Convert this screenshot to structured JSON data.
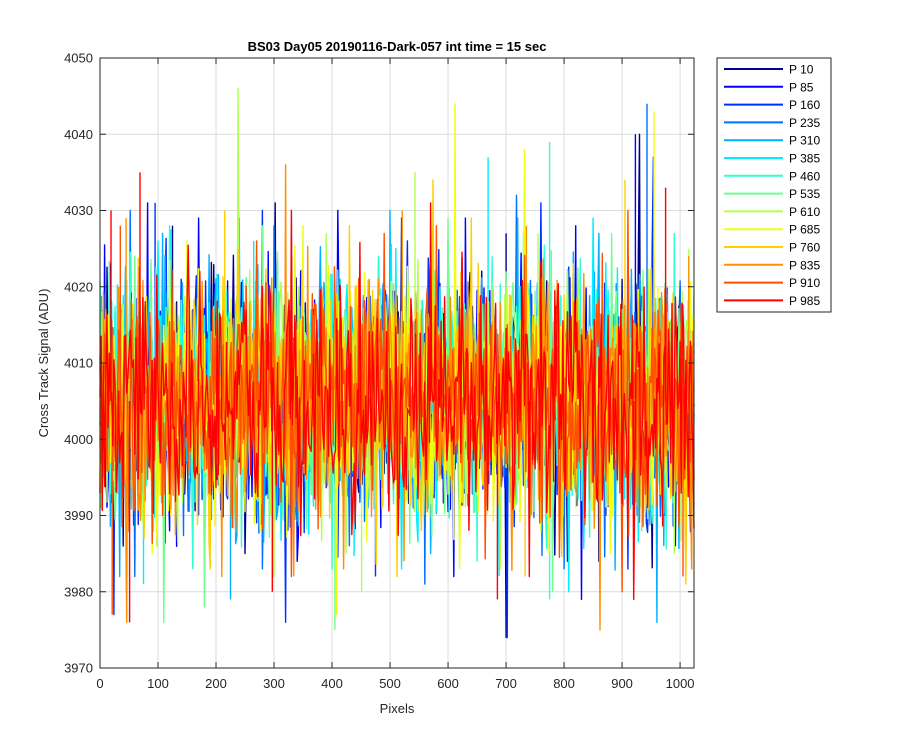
{
  "chart_data": {
    "type": "line",
    "title": "BS03 Day05 20190116-Dark-057 int time = 15 sec",
    "xlabel": "Pixels",
    "ylabel": "Cross Track Signal (ADU)",
    "xlim": [
      0,
      1024
    ],
    "ylim": [
      3970,
      4050
    ],
    "xticks": [
      0,
      100,
      200,
      300,
      400,
      500,
      600,
      700,
      800,
      900,
      1000
    ],
    "yticks": [
      3970,
      3980,
      3990,
      4000,
      4010,
      4020,
      4030,
      4040,
      4050
    ],
    "grid": true,
    "legend_position": "outside-top-right",
    "series_summary": {
      "mean": 4005,
      "typical_low": 3990,
      "typical_high": 4020,
      "note": "Dense noisy signal per pixel column; values fluctuate roughly between 3975 and 4046 ADU."
    },
    "series": [
      {
        "name": "P 10",
        "color": "#00008f",
        "peaks": [
          [
            18,
            4023
          ],
          [
            125,
            4028
          ],
          [
            302,
            4031
          ],
          [
            520,
            4029
          ],
          [
            700,
            4027
          ],
          [
            930,
            4040
          ]
        ],
        "dips": [
          [
            40,
            3986
          ],
          [
            250,
            3985
          ],
          [
            430,
            3990
          ],
          [
            700,
            3974
          ],
          [
            860,
            3984
          ]
        ]
      },
      {
        "name": "P 85",
        "color": "#0000ff",
        "peaks": [
          [
            82,
            4031
          ],
          [
            170,
            4029
          ],
          [
            410,
            4030
          ],
          [
            630,
            4029
          ],
          [
            820,
            4028
          ],
          [
            923,
            4040
          ]
        ],
        "dips": [
          [
            120,
            3988
          ],
          [
            340,
            3984
          ],
          [
            610,
            3982
          ],
          [
            830,
            3979
          ]
        ]
      },
      {
        "name": "P 160",
        "color": "#0030ff",
        "peaks": [
          [
            95,
            4031
          ],
          [
            280,
            4030
          ],
          [
            530,
            4026
          ],
          [
            760,
            4031
          ],
          [
            954,
            4037
          ]
        ],
        "dips": [
          [
            24,
            3977
          ],
          [
            320,
            3976
          ],
          [
            475,
            3982
          ],
          [
            702,
            3974
          ],
          [
            910,
            3983
          ]
        ]
      },
      {
        "name": "P 235",
        "color": "#0070ff",
        "peaks": [
          [
            52,
            4030
          ],
          [
            300,
            4028
          ],
          [
            600,
            4026
          ],
          [
            718,
            4032
          ],
          [
            943,
            4044
          ]
        ],
        "dips": [
          [
            60,
            3982
          ],
          [
            280,
            3983
          ],
          [
            560,
            3981
          ],
          [
            800,
            3983
          ]
        ]
      },
      {
        "name": "P 310",
        "color": "#00b0ff",
        "peaks": [
          [
            108,
            4027
          ],
          [
            240,
            4029
          ],
          [
            500,
            4030
          ],
          [
            720,
            4029
          ],
          [
            860,
            4027
          ]
        ],
        "dips": [
          [
            34,
            3982
          ],
          [
            225,
            3979
          ],
          [
            570,
            3985
          ],
          [
            960,
            3976
          ]
        ]
      },
      {
        "name": "P 385",
        "color": "#00efff",
        "peaks": [
          [
            100,
            4026
          ],
          [
            265,
            4026
          ],
          [
            510,
            4025
          ],
          [
            669,
            4037
          ],
          [
            850,
            4029
          ]
        ],
        "dips": [
          [
            75,
            3981
          ],
          [
            298,
            3982
          ],
          [
            520,
            3983
          ],
          [
            808,
            3980
          ]
        ]
      },
      {
        "name": "P 460",
        "color": "#30ffcf",
        "peaks": [
          [
            120,
            4028
          ],
          [
            330,
            4027
          ],
          [
            480,
            4024
          ],
          [
            775,
            4039
          ],
          [
            990,
            4027
          ]
        ],
        "dips": [
          [
            160,
            3983
          ],
          [
            400,
            3983
          ],
          [
            650,
            3984
          ],
          [
            775,
            3979
          ]
        ]
      },
      {
        "name": "P 535",
        "color": "#70ff8f",
        "peaks": [
          [
            60,
            4024
          ],
          [
            280,
            4028
          ],
          [
            600,
            4029
          ],
          [
            730,
            4027
          ],
          [
            882,
            4027
          ]
        ],
        "dips": [
          [
            110,
            3976
          ],
          [
            180,
            3978
          ],
          [
            405,
            3975
          ],
          [
            780,
            3980
          ]
        ]
      },
      {
        "name": "P 610",
        "color": "#b0ff4f",
        "peaks": [
          [
            238,
            4046
          ],
          [
            390,
            4027
          ],
          [
            543,
            4035
          ],
          [
            755,
            4027
          ],
          [
            1015,
            4025
          ]
        ],
        "dips": [
          [
            45,
            3980
          ],
          [
            300,
            3982
          ],
          [
            451,
            3980
          ],
          [
            690,
            3983
          ],
          [
            990,
            3985
          ]
        ]
      },
      {
        "name": "P 685",
        "color": "#efff10",
        "peaks": [
          [
            150,
            4026
          ],
          [
            350,
            4028
          ],
          [
            612,
            4044
          ],
          [
            732,
            4038
          ],
          [
            955,
            4043
          ]
        ],
        "dips": [
          [
            90,
            3985
          ],
          [
            408,
            3977
          ],
          [
            620,
            3983
          ],
          [
            880,
            3985
          ]
        ]
      },
      {
        "name": "P 760",
        "color": "#ffcf00",
        "peaks": [
          [
            215,
            4030
          ],
          [
            430,
            4028
          ],
          [
            574,
            4034
          ],
          [
            640,
            4029
          ],
          [
            905,
            4034
          ]
        ],
        "dips": [
          [
            190,
            3983
          ],
          [
            512,
            3982
          ],
          [
            733,
            3982
          ],
          [
            1010,
            3981
          ]
        ]
      },
      {
        "name": "P 835",
        "color": "#ff8f00",
        "peaks": [
          [
            45,
            4029
          ],
          [
            320,
            4036
          ],
          [
            521,
            4030
          ],
          [
            735,
            4028
          ],
          [
            1015,
            4024
          ]
        ],
        "dips": [
          [
            46,
            3976
          ],
          [
            210,
            3982
          ],
          [
            420,
            3983
          ],
          [
            862,
            3975
          ],
          [
            1020,
            3983
          ]
        ]
      },
      {
        "name": "P 910",
        "color": "#ff4f00",
        "peaks": [
          [
            35,
            4028
          ],
          [
            270,
            4026
          ],
          [
            490,
            4027
          ],
          [
            580,
            4028
          ],
          [
            910,
            4030
          ]
        ],
        "dips": [
          [
            21,
            3977
          ],
          [
            330,
            3982
          ],
          [
            900,
            3980
          ],
          [
            1005,
            3982
          ]
        ]
      },
      {
        "name": "P 985",
        "color": "#ff0000",
        "peaks": [
          [
            19,
            4030
          ],
          [
            69,
            4035
          ],
          [
            330,
            4030
          ],
          [
            570,
            4031
          ],
          [
            975,
            4033
          ]
        ],
        "dips": [
          [
            51,
            3976
          ],
          [
            297,
            3980
          ],
          [
            685,
            3979
          ],
          [
            740,
            3982
          ],
          [
            920,
            3979
          ]
        ]
      }
    ]
  }
}
